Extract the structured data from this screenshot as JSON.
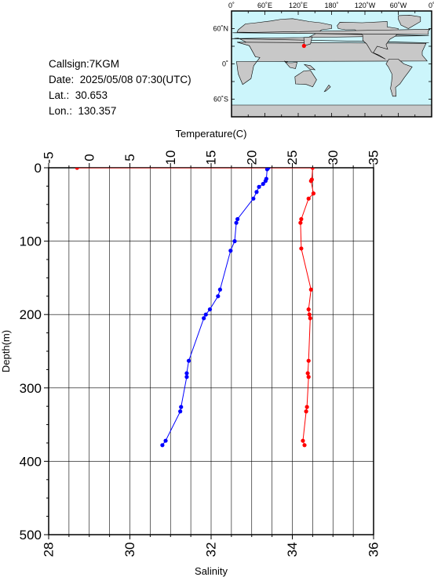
{
  "station": {
    "callsign": "Callsign:7KGM",
    "date": "Date:  2025/05/08 07:30(UTC)",
    "lat": "Lat.:  30.653",
    "lon": "Lon.:  130.357"
  },
  "map": {
    "lon_labels": [
      "0˚",
      "60˚E",
      "120˚E",
      "180˚",
      "120˚W",
      "60˚W",
      "0˚"
    ],
    "lat_labels": [
      "60˚N",
      "0˚",
      "60˚S"
    ],
    "marker": {
      "lon": 130.357,
      "lat": 30.653
    },
    "colors": {
      "ocean": "#ccf5fb",
      "land": "#c8c8c8",
      "marker": "#ff0000"
    }
  },
  "chart_data": {
    "type": "line",
    "title": "",
    "xlabel_top": "Temperature(C)",
    "xlabel_bottom": "Salinity",
    "ylabel": "Depth(m)",
    "temperature_axis": {
      "min": -5,
      "max": 35,
      "ticks": [
        -5,
        0,
        5,
        10,
        15,
        20,
        25,
        30,
        35
      ]
    },
    "salinity_axis": {
      "min": 28,
      "max": 36,
      "ticks": [
        28,
        30,
        32,
        34,
        36
      ]
    },
    "depth_axis": {
      "min": 0,
      "max": 500,
      "ticks": [
        0,
        100,
        200,
        300,
        400,
        500
      ],
      "inverted": true
    },
    "grid": true,
    "series": [
      {
        "key": "temperature",
        "color": "#ff0000",
        "axis": "temperature",
        "points": [
          [
            -1.5,
            0
          ],
          [
            27.5,
            0
          ],
          [
            27.4,
            16
          ],
          [
            27.3,
            18
          ],
          [
            27.6,
            35
          ],
          [
            27.0,
            42
          ],
          [
            26.1,
            70
          ],
          [
            26.0,
            75
          ],
          [
            26.1,
            110
          ],
          [
            27.3,
            166
          ],
          [
            27.0,
            193
          ],
          [
            27.1,
            200
          ],
          [
            27.2,
            205
          ],
          [
            27.0,
            263
          ],
          [
            26.9,
            280
          ],
          [
            27.0,
            285
          ],
          [
            26.8,
            326
          ],
          [
            26.7,
            332
          ],
          [
            26.3,
            372
          ],
          [
            26.5,
            378
          ]
        ]
      },
      {
        "key": "salinity",
        "color": "#0000ff",
        "axis": "salinity",
        "points": [
          [
            33.41,
            0
          ],
          [
            33.38,
            2
          ],
          [
            33.36,
            15
          ],
          [
            33.34,
            18
          ],
          [
            33.28,
            22
          ],
          [
            33.18,
            26
          ],
          [
            33.12,
            33
          ],
          [
            33.04,
            42
          ],
          [
            32.65,
            70
          ],
          [
            32.62,
            75
          ],
          [
            32.58,
            100
          ],
          [
            32.48,
            113
          ],
          [
            32.22,
            166
          ],
          [
            32.17,
            175
          ],
          [
            31.97,
            193
          ],
          [
            31.87,
            200
          ],
          [
            31.82,
            205
          ],
          [
            31.45,
            263
          ],
          [
            31.4,
            280
          ],
          [
            31.4,
            285
          ],
          [
            31.26,
            326
          ],
          [
            31.24,
            332
          ],
          [
            30.88,
            372
          ],
          [
            30.8,
            378
          ]
        ]
      }
    ]
  }
}
